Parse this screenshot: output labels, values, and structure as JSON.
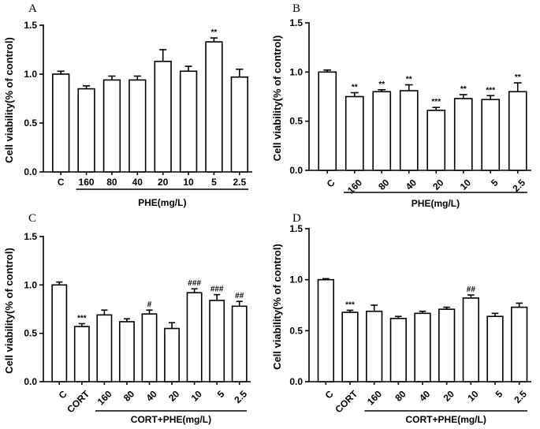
{
  "chart_data": [
    {
      "type": "bar",
      "panel": "A",
      "ylabel": "Cell viability(% of control)",
      "ylim": [
        0,
        1.5
      ],
      "yticks": [
        "0.0",
        "0.5",
        "1.0",
        "1.5"
      ],
      "categories": [
        "C",
        "160",
        "80",
        "40",
        "20",
        "10",
        "5",
        "2.5"
      ],
      "values": [
        1.0,
        0.85,
        0.94,
        0.94,
        1.13,
        1.03,
        1.33,
        0.97
      ],
      "errors": [
        0.03,
        0.03,
        0.04,
        0.04,
        0.12,
        0.05,
        0.04,
        0.08
      ],
      "annotations": [
        "",
        "",
        "",
        "",
        "",
        "",
        "**",
        ""
      ],
      "xlabel": "PHE(mg/L)",
      "bracket_from": 1,
      "tick_rotation": 0
    },
    {
      "type": "bar",
      "panel": "B",
      "ylabel": "Cell viability(% of control)",
      "ylim": [
        0,
        1.5
      ],
      "yticks": [
        "0.0",
        "0.5",
        "1.0",
        "1.5"
      ],
      "categories": [
        "C",
        "160",
        "80",
        "40",
        "20",
        "10",
        "5",
        "2.5"
      ],
      "values": [
        1.0,
        0.75,
        0.8,
        0.81,
        0.61,
        0.73,
        0.72,
        0.8
      ],
      "errors": [
        0.02,
        0.04,
        0.02,
        0.06,
        0.03,
        0.04,
        0.04,
        0.09
      ],
      "annotations": [
        "",
        "**",
        "**",
        "**",
        "***",
        "**",
        "***",
        "**"
      ],
      "xlabel": "PHE(mg/L)",
      "bracket_from": 1,
      "tick_rotation": -45
    },
    {
      "type": "bar",
      "panel": "C",
      "ylabel": "Cell viability(% of control)",
      "ylim": [
        0,
        1.5
      ],
      "yticks": [
        "0.0",
        "0.5",
        "1.0",
        "1.5"
      ],
      "categories": [
        "C",
        "CORT",
        "160",
        "80",
        "40",
        "20",
        "10",
        "5",
        "2.5"
      ],
      "values": [
        1.0,
        0.57,
        0.69,
        0.62,
        0.7,
        0.55,
        0.92,
        0.84,
        0.78
      ],
      "errors": [
        0.03,
        0.03,
        0.05,
        0.03,
        0.04,
        0.06,
        0.04,
        0.06,
        0.05
      ],
      "annotations": [
        "",
        "***",
        "",
        "",
        "#",
        "",
        "###",
        "###",
        "##"
      ],
      "xlabel": "CORT+PHE(mg/L)",
      "bracket_from": 2,
      "tick_rotation": -45
    },
    {
      "type": "bar",
      "panel": "D",
      "ylabel": "Cell viability(% of control)",
      "ylim": [
        0,
        1.5
      ],
      "yticks": [
        "0.0",
        "0.5",
        "1.0",
        "1.5"
      ],
      "categories": [
        "C",
        "CORT",
        "160",
        "80",
        "40",
        "20",
        "10",
        "5",
        "2.5"
      ],
      "values": [
        1.0,
        0.68,
        0.69,
        0.62,
        0.67,
        0.71,
        0.82,
        0.64,
        0.73
      ],
      "errors": [
        0.01,
        0.02,
        0.06,
        0.02,
        0.02,
        0.02,
        0.03,
        0.03,
        0.04
      ],
      "annotations": [
        "",
        "***",
        "",
        "",
        "",
        "",
        "##",
        "",
        ""
      ],
      "xlabel": "CORT+PHE(mg/L)",
      "bracket_from": 2,
      "tick_rotation": -45
    }
  ]
}
